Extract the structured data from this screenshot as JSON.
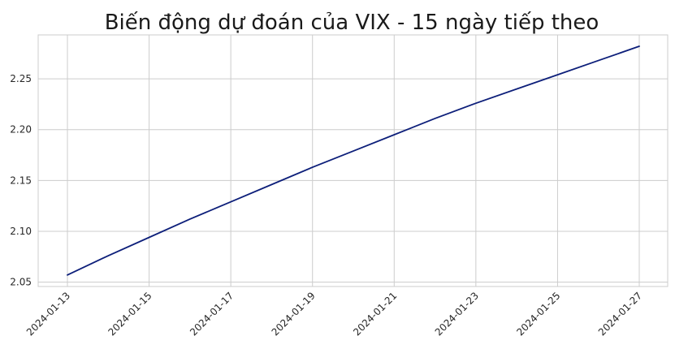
{
  "chart_data": {
    "type": "line",
    "title": "Biến động dự đoán của VIX - 15 ngày tiếp theo",
    "xlabel": "",
    "ylabel": "",
    "x": [
      "2024-01-13",
      "2024-01-14",
      "2024-01-15",
      "2024-01-16",
      "2024-01-17",
      "2024-01-18",
      "2024-01-19",
      "2024-01-20",
      "2024-01-21",
      "2024-01-22",
      "2024-01-23",
      "2024-01-24",
      "2024-01-25",
      "2024-01-26",
      "2024-01-27"
    ],
    "series": [
      {
        "values": [
          2.057,
          2.076,
          2.094,
          2.112,
          2.129,
          2.146,
          2.163,
          2.179,
          2.195,
          2.211,
          2.226,
          2.24,
          2.254,
          2.268,
          2.282
        ],
        "color": "#0d1f7a"
      }
    ],
    "x_ticks": [
      "2024-01-13",
      "2024-01-15",
      "2024-01-17",
      "2024-01-19",
      "2024-01-21",
      "2024-01-23",
      "2024-01-25",
      "2024-01-27"
    ],
    "y_ticks": [
      "2.05",
      "2.10",
      "2.15",
      "2.20",
      "2.25"
    ],
    "ylim": [
      2.0457,
      2.2932
    ],
    "grid": true,
    "legend": "none"
  }
}
